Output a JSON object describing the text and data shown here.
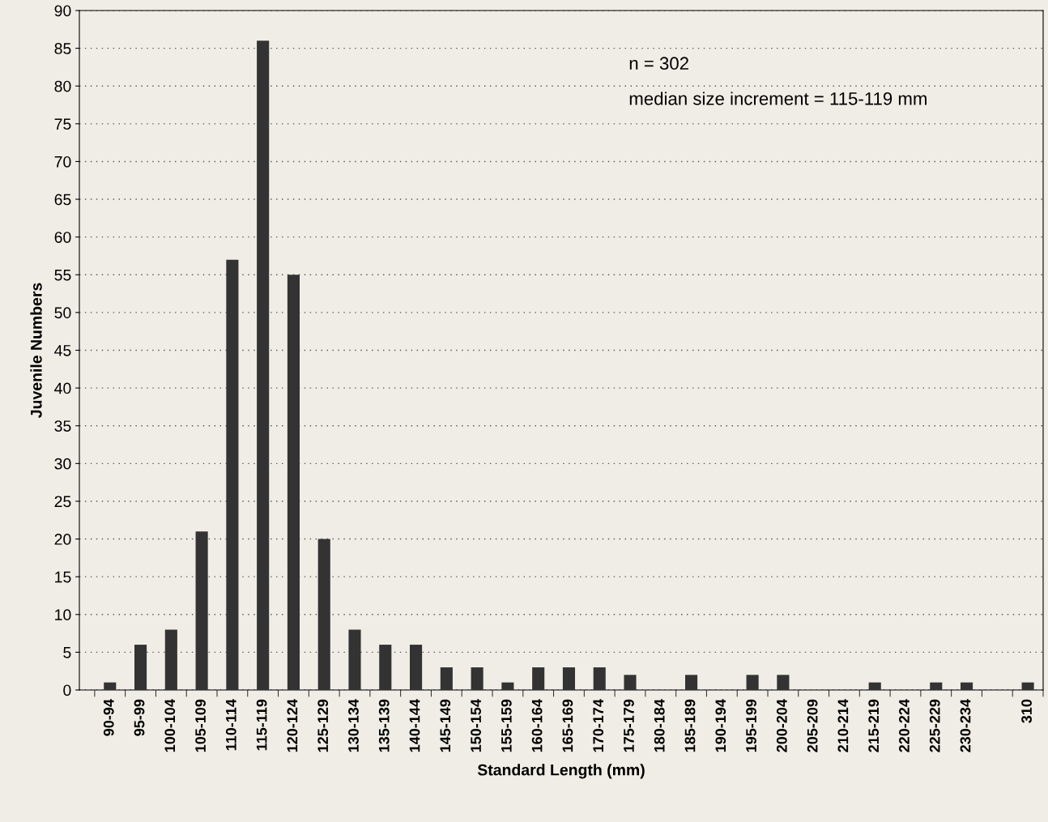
{
  "chart_data": {
    "type": "bar",
    "xlabel": "Standard Length (mm)",
    "ylabel": "Juvenile Numbers",
    "categories": [
      "90-94",
      "95-99",
      "100-104",
      "105-109",
      "110-114",
      "115-119",
      "120-124",
      "125-129",
      "130-134",
      "135-139",
      "140-144",
      "145-149",
      "150-154",
      "155-159",
      "160-164",
      "165-169",
      "170-174",
      "175-179",
      "180-184",
      "185-189",
      "190-194",
      "195-199",
      "200-204",
      "205-209",
      "210-214",
      "215-219",
      "220-224",
      "225-229",
      "230-234",
      null,
      "310"
    ],
    "values": [
      1,
      6,
      8,
      21,
      57,
      86,
      55,
      20,
      8,
      6,
      6,
      3,
      3,
      1,
      3,
      3,
      3,
      2,
      0,
      2,
      0,
      2,
      2,
      0,
      0,
      1,
      0,
      1,
      1,
      0,
      1
    ],
    "color": "#333333",
    "ylim": [
      0,
      90
    ],
    "yticks": [
      0,
      5,
      10,
      15,
      20,
      25,
      30,
      35,
      40,
      45,
      50,
      55,
      60,
      65,
      70,
      75,
      80,
      85,
      90
    ],
    "grid": "y",
    "legend": false,
    "annotations": [
      "n = 302",
      "median size increment = 115-119 mm"
    ]
  }
}
